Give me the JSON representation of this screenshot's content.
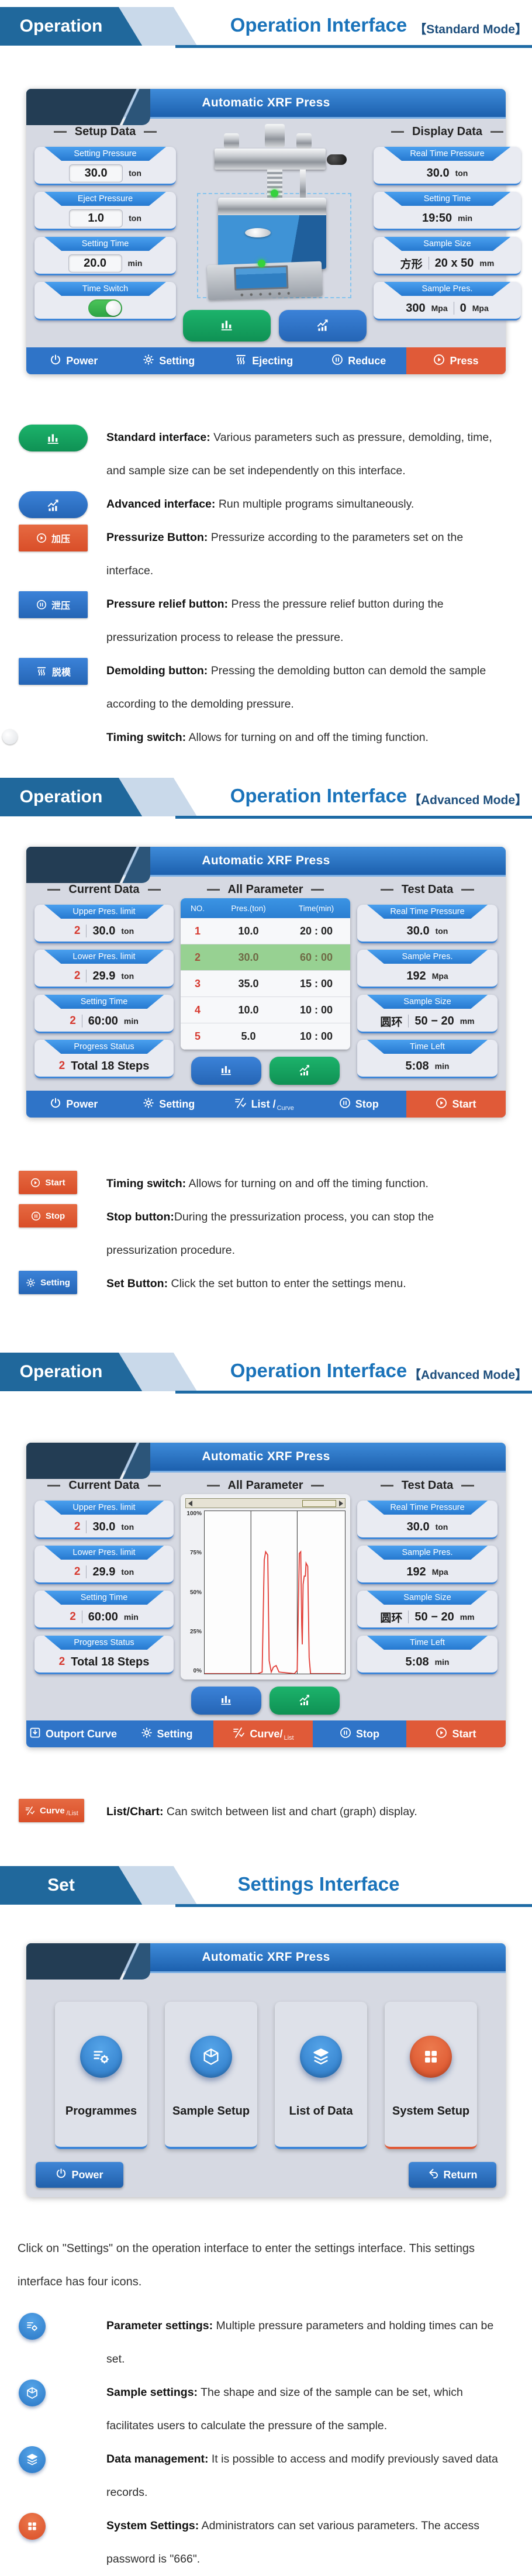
{
  "colors": {
    "accent_blue": "#2f74c8",
    "accent_orange": "#e05a38",
    "accent_green": "#17a35b",
    "header_dark_blue": "#20689c",
    "title_blue": "#1a73ba"
  },
  "headers": [
    {
      "tag": "Operation",
      "title": "Operation Interface",
      "mode": "【Standard Mode】"
    },
    {
      "tag": "Operation",
      "title": "Operation Interface",
      "mode": "【Advanced Mode】"
    },
    {
      "tag": "Operation",
      "title": "Operation Interface",
      "mode": "【Advanced Mode】"
    },
    {
      "tag": "Set",
      "title": "Settings Interface",
      "mode": ""
    }
  ],
  "screen1": {
    "title": "Automatic XRF Press",
    "left_heading": "Setup Data",
    "right_heading": "Display Data",
    "fields_left": [
      {
        "label": "Setting Pressure",
        "value": "30.0",
        "unit": "ton"
      },
      {
        "label": "Eject Pressure",
        "value": "1.0",
        "unit": "ton"
      },
      {
        "label": "Setting Time",
        "value": "20.0",
        "unit": "min"
      },
      {
        "label": "Time Switch",
        "toggle": "on"
      }
    ],
    "fields_right": [
      {
        "label": "Real Time Pressure",
        "value": "30.0",
        "unit": "ton"
      },
      {
        "label": "Setting Time",
        "value": "19:50",
        "unit": "min"
      },
      {
        "label": "Sample Size",
        "shape": "方形",
        "value": "20 x 50",
        "unit": "mm"
      },
      {
        "label": "Sample Pres.",
        "value1": "300",
        "unit1": "Mpa",
        "value2": "0",
        "unit2": "Mpa"
      }
    ],
    "nav": [
      {
        "label": "Power"
      },
      {
        "label": "Setting"
      },
      {
        "label": "Ejecting"
      },
      {
        "label": "Reduce"
      },
      {
        "label": "Press"
      }
    ]
  },
  "legend1": {
    "items": [
      {
        "bold": "Standard interface:",
        "text": " Various parameters such as pressure, demolding, time, and sample size can be set independently on this interface."
      },
      {
        "bold": "Advanced interface:",
        "text": " Run multiple programs simultaneously."
      },
      {
        "btn": "加压",
        "bold": "Pressurize Button:",
        "text": " Pressurize according to the parameters set on the interface."
      },
      {
        "btn": "泄压",
        "bold": "Pressure relief button:",
        "text": " Press the pressure relief button during the pressurization process to release the pressure."
      },
      {
        "btn": "脱模",
        "bold": "Demolding button:",
        "text": " Pressing the demolding button can demold the sample according to the demolding pressure."
      },
      {
        "bold": "Timing switch:",
        "text": " Allows for turning on and off the timing function."
      }
    ]
  },
  "screen2": {
    "title": "Automatic XRF Press",
    "headings": [
      "Current Data",
      "All Parameter",
      "Test Data"
    ],
    "fields_left": [
      {
        "label": "Upper Pres. limit",
        "step": "2",
        "value": "30.0",
        "unit": "ton"
      },
      {
        "label": "Lower Pres. limit",
        "step": "2",
        "value": "29.9",
        "unit": "ton"
      },
      {
        "label": "Setting Time",
        "step": "2",
        "value": "60:00",
        "unit": "min"
      },
      {
        "label": "Progress Status",
        "step": "2",
        "value": "Total 18 Steps",
        "unit": ""
      }
    ],
    "table": {
      "cols": [
        "NO.",
        "Pres.(ton)",
        "Time(min)"
      ],
      "rows": [
        {
          "no": "1",
          "pres": "10.0",
          "time": "20 : 00"
        },
        {
          "no": "2",
          "pres": "30.0",
          "time": "60 : 00"
        },
        {
          "no": "3",
          "pres": "35.0",
          "time": "15 : 00"
        },
        {
          "no": "4",
          "pres": "10.0",
          "time": "10 : 00"
        },
        {
          "no": "5",
          "pres": "5.0",
          "time": "10 : 00"
        }
      ]
    },
    "fields_right": [
      {
        "label": "Real Time Pressure",
        "value": "30.0",
        "unit": "ton"
      },
      {
        "label": "Sample Pres.",
        "value": "192",
        "unit": "Mpa"
      },
      {
        "label": "Sample Size",
        "shape": "圆环",
        "value": "50 − 20",
        "unit": "mm"
      },
      {
        "label": "Time Left",
        "value": "5:08",
        "unit": "min"
      }
    ],
    "nav": [
      {
        "label": "Power"
      },
      {
        "label": "Setting"
      },
      {
        "label": "List /",
        "small": "Curve"
      },
      {
        "label": "Stop"
      },
      {
        "label": "Start"
      }
    ]
  },
  "legend2": {
    "items": [
      {
        "btn": "Start",
        "bold": "Timing switch:",
        "text": " Allows for turning on and off the timing function."
      },
      {
        "btn": "Stop",
        "bold": "Stop button:",
        "text": "During the pressurization process, you can stop the pressurization procedure."
      },
      {
        "btn": "Setting",
        "bold": "Set Button:",
        "text": " Click the set button to enter the settings menu."
      }
    ]
  },
  "screen3": {
    "title": "Automatic XRF Press",
    "headings": [
      "Current Data",
      "All Parameter",
      "Test Data"
    ],
    "fields_left": [
      {
        "label": "Upper Pres. limit",
        "step": "2",
        "value": "30.0",
        "unit": "ton"
      },
      {
        "label": "Lower Pres. limit",
        "step": "2",
        "value": "29.9",
        "unit": "ton"
      },
      {
        "label": "Setting Time",
        "step": "2",
        "value": "60:00",
        "unit": "min"
      },
      {
        "label": "Progress Status",
        "step": "2",
        "value": "Total 18 Steps",
        "unit": ""
      }
    ],
    "fields_right": [
      {
        "label": "Real Time Pressure",
        "value": "30.0",
        "unit": "ton"
      },
      {
        "label": "Sample Pres.",
        "value": "192",
        "unit": "Mpa"
      },
      {
        "label": "Sample Size",
        "shape": "圆环",
        "value": "50 − 20",
        "unit": "mm"
      },
      {
        "label": "Time Left",
        "value": "5:08",
        "unit": "min"
      }
    ],
    "nav": [
      {
        "label": "Outport Curve"
      },
      {
        "label": "Setting"
      },
      {
        "label": "Curve/",
        "small": "List"
      },
      {
        "label": "Stop"
      },
      {
        "label": "Start"
      }
    ]
  },
  "chart_data": {
    "type": "line",
    "title": "All Parameter",
    "yticks": [
      "100%",
      "75%",
      "50%",
      "25%",
      "0%"
    ],
    "ylim": [
      0,
      100
    ],
    "xgrid": [
      33,
      66
    ],
    "series_name": "pressure-curve",
    "points": [
      [
        0,
        0
      ],
      [
        38,
        0
      ],
      [
        41,
        1
      ],
      [
        42.5,
        70
      ],
      [
        43.5,
        75
      ],
      [
        45,
        73
      ],
      [
        46,
        8
      ],
      [
        47.5,
        1
      ],
      [
        49,
        4
      ],
      [
        51,
        5
      ],
      [
        53,
        1
      ],
      [
        64,
        0
      ],
      [
        66,
        2
      ],
      [
        67.5,
        74
      ],
      [
        68.5,
        75
      ],
      [
        69.2,
        30
      ],
      [
        69.6,
        18
      ],
      [
        70.2,
        55
      ],
      [
        71,
        60
      ],
      [
        71.8,
        60
      ],
      [
        72.3,
        68
      ],
      [
        73.5,
        66
      ],
      [
        74.5,
        10
      ],
      [
        75.5,
        0
      ],
      [
        97,
        0
      ]
    ]
  },
  "legend3": {
    "items": [
      {
        "btn": "Curve",
        "btn_small": "/List",
        "bold": "List/Chart:",
        "text": " Can switch between list and chart (graph) display."
      }
    ]
  },
  "screen4": {
    "title": "Automatic XRF Press",
    "cards": [
      {
        "label": "Programmes"
      },
      {
        "label": "Sample Setup"
      },
      {
        "label": "List of Data"
      },
      {
        "label": "System Setup"
      }
    ],
    "power_label": "Power",
    "return_label": "Return"
  },
  "paragraph": "Click on \"Settings\" on the operation interface to enter the settings interface. This settings interface has four icons.",
  "legend4": {
    "items": [
      {
        "bold": "Parameter settings:",
        "text": " Multiple pressure parameters and holding times can be set."
      },
      {
        "bold": "Sample settings:",
        "text": " The shape and size of the sample can be set, which facilitates users to calculate the pressure of the sample."
      },
      {
        "bold": "Data management:",
        "text": " It is possible to access and modify previously saved data records."
      },
      {
        "bold": "System Settings:",
        "text": " Administrators can set various parameters. The access password is \"666\"."
      }
    ]
  }
}
